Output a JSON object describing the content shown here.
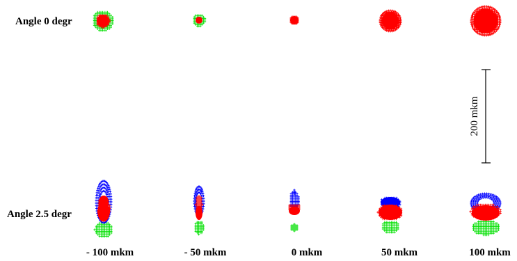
{
  "rows": [
    {
      "label": "Angle 0 degr"
    },
    {
      "label": "Angle 2.5 degr"
    }
  ],
  "columns": [
    {
      "label": "- 100 mkm"
    },
    {
      "label": "- 50 mkm"
    },
    {
      "label": "0 mkm"
    },
    {
      "label": "50 mkm"
    },
    {
      "label": "100 mkm"
    }
  ],
  "scale_bar": {
    "label": "200 mkm",
    "length_um": 200
  },
  "colors": {
    "red": "#ff0000",
    "green": "#00e000",
    "blue": "#0000ff",
    "ink": "#000000"
  }
}
